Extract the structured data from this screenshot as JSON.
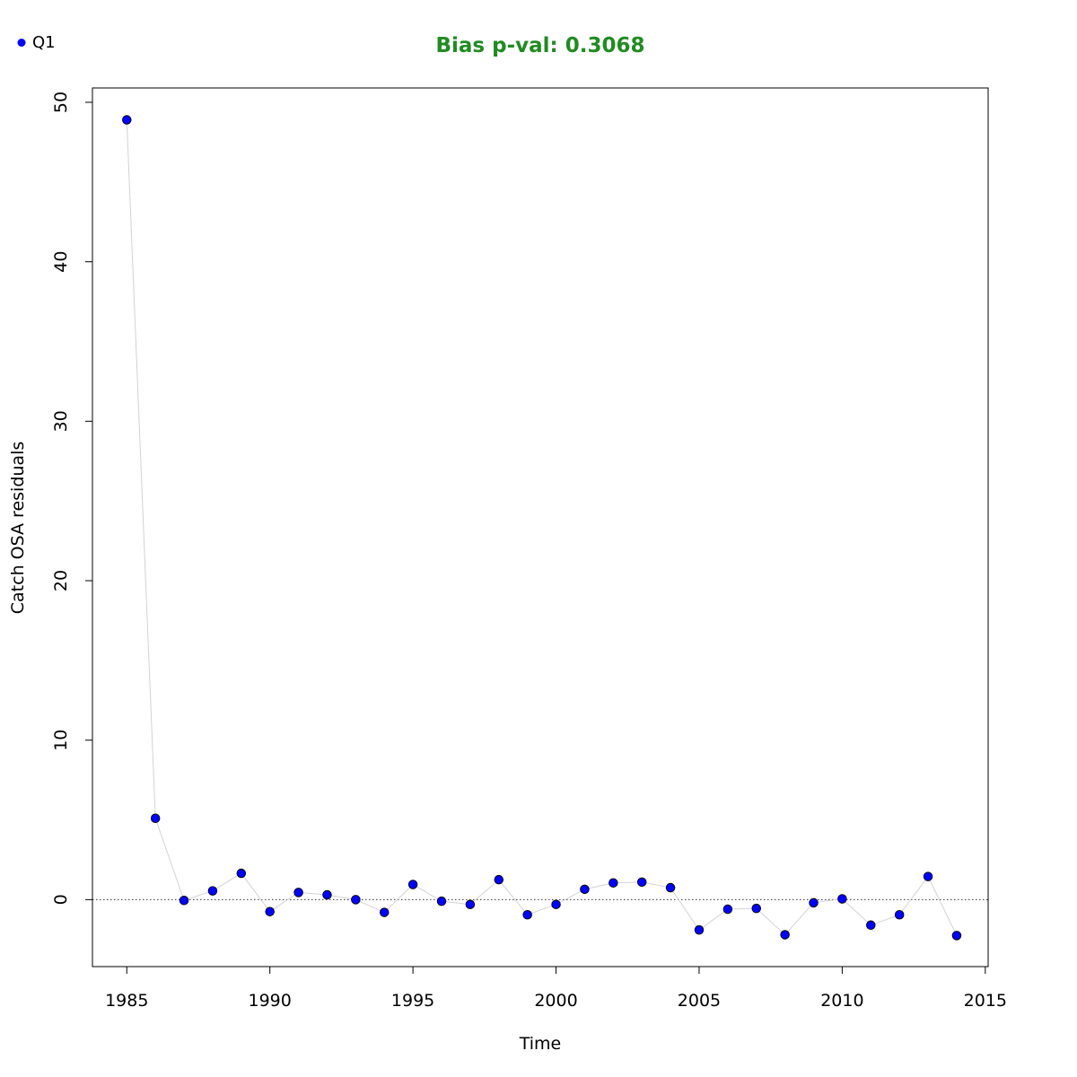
{
  "chart_data": {
    "type": "scatter",
    "title": "Bias p-val: 0.3068",
    "title_color": "#228B22",
    "xlabel": "Time",
    "ylabel": "Catch OSA residuals",
    "xlim": [
      1983.8,
      2015.1
    ],
    "ylim": [
      -4.2,
      50.9
    ],
    "x_ticks": [
      1985,
      1990,
      1995,
      2000,
      2005,
      2010,
      2015
    ],
    "y_ticks": [
      0,
      10,
      20,
      30,
      40,
      50
    ],
    "reference_line_y": 0,
    "grid": false,
    "legend_position": "top-left",
    "series": [
      {
        "name": "Q1",
        "color": "#0000FF",
        "line_color": "#D3D3D3",
        "x": [
          1985,
          1986,
          1987,
          1988,
          1989,
          1990,
          1991,
          1992,
          1993,
          1994,
          1995,
          1996,
          1997,
          1998,
          1999,
          2000,
          2001,
          2002,
          2003,
          2004,
          2005,
          2006,
          2007,
          2008,
          2009,
          2010,
          2011,
          2012,
          2013,
          2014
        ],
        "values": [
          48.9,
          5.1,
          -0.05,
          0.55,
          1.65,
          -0.75,
          0.45,
          0.3,
          0.0,
          -0.8,
          0.95,
          -0.1,
          -0.3,
          1.25,
          -0.95,
          -0.3,
          0.65,
          1.05,
          1.1,
          0.75,
          -1.9,
          -0.6,
          -0.55,
          -2.2,
          -0.2,
          0.05,
          -1.6,
          -0.95,
          1.45,
          -2.25
        ]
      }
    ]
  }
}
